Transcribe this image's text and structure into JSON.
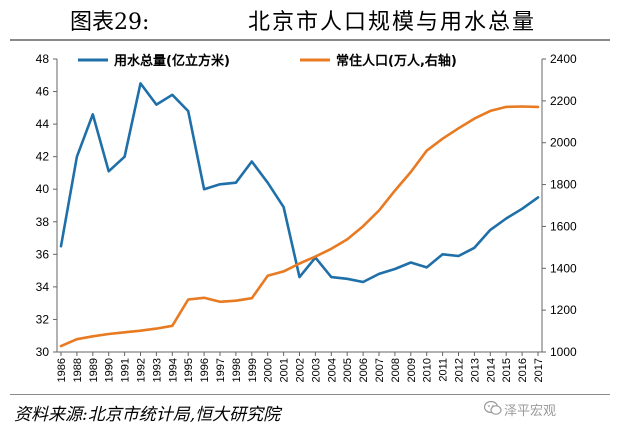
{
  "header": {
    "figure_label": "图表29:",
    "title": "北京市人口规模与用水总量"
  },
  "footer": {
    "source": "资料来源:北京市统计局,恒大研究院",
    "watermark": "泽平宏观"
  },
  "colors": {
    "water": "#1f6fa8",
    "population": "#e87a22",
    "axis": "#666666",
    "text": "#000000"
  },
  "chart_data": {
    "type": "line",
    "x": [
      "1986",
      "1988",
      "1989",
      "1990",
      "1991",
      "1992",
      "1993",
      "1994",
      "1995",
      "1996",
      "1997",
      "1998",
      "1999",
      "2000",
      "2001",
      "2002",
      "2003",
      "2004",
      "2005",
      "2006",
      "2007",
      "2008",
      "2009",
      "2010",
      "2011",
      "2012",
      "2013",
      "2014",
      "2015",
      "2016",
      "2017"
    ],
    "series": [
      {
        "name": "用水总量(亿立方米)",
        "axis": "left",
        "color": "#1f6fa8",
        "values": [
          36.5,
          42.0,
          44.6,
          41.1,
          42.0,
          46.5,
          45.2,
          45.8,
          44.8,
          40.0,
          40.3,
          40.4,
          41.7,
          40.4,
          38.9,
          34.6,
          35.8,
          34.6,
          34.5,
          34.3,
          34.8,
          35.1,
          35.5,
          35.2,
          36.0,
          35.9,
          36.4,
          37.5,
          38.2,
          38.8,
          39.5
        ]
      },
      {
        "name": "常住人口(万人,右轴)",
        "axis": "right",
        "color": "#e87a22",
        "values": [
          1028,
          1061,
          1075,
          1086,
          1094,
          1102,
          1112,
          1125,
          1251,
          1259,
          1240,
          1245,
          1257,
          1364,
          1385,
          1423,
          1456,
          1493,
          1538,
          1601,
          1676,
          1771,
          1860,
          1962,
          2019,
          2069,
          2115,
          2152,
          2171,
          2173,
          2171
        ]
      }
    ],
    "y_left": {
      "min": 30,
      "max": 48,
      "ticks": [
        30,
        32,
        34,
        36,
        38,
        40,
        42,
        44,
        46,
        48
      ]
    },
    "y_right": {
      "min": 1000,
      "max": 2400,
      "ticks": [
        1000,
        1200,
        1400,
        1600,
        1800,
        2000,
        2200,
        2400
      ]
    },
    "legend_position": "top",
    "grid": false
  }
}
